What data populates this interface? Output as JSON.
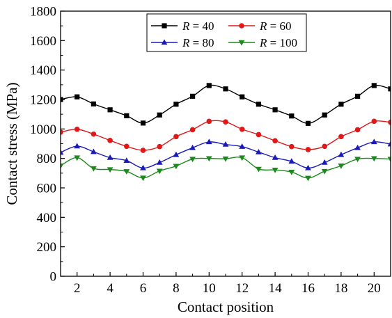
{
  "chart_data": {
    "type": "line",
    "xlabel": "Contact position",
    "ylabel": "Contact stress (MPa)",
    "xlim": [
      1,
      21
    ],
    "ylim": [
      0,
      1800
    ],
    "xticks": [
      2,
      4,
      6,
      8,
      10,
      12,
      14,
      16,
      18,
      20
    ],
    "yticks": [
      0,
      200,
      400,
      600,
      800,
      1000,
      1200,
      1400,
      1600,
      1800
    ],
    "legend_position": "top-right",
    "grid": false,
    "x": [
      1,
      2,
      3,
      4,
      5,
      6,
      7,
      8,
      9,
      10,
      11,
      12,
      13,
      14,
      15,
      16,
      17,
      18,
      19,
      20,
      21
    ],
    "series": [
      {
        "name": "R = 40",
        "legend_var": "R",
        "legend_val": "= 40",
        "color": "#000000",
        "marker": "square",
        "values": [
          1200,
          1218,
          1170,
          1130,
          1090,
          1040,
          1095,
          1168,
          1222,
          1295,
          1272,
          1218,
          1168,
          1130,
          1088,
          1038,
          1095,
          1168,
          1222,
          1295,
          1272
        ]
      },
      {
        "name": "R = 60",
        "legend_var": "R",
        "legend_val": "= 60",
        "color": "#e01818",
        "marker": "circle",
        "values": [
          978,
          998,
          965,
          922,
          882,
          855,
          880,
          948,
          995,
          1052,
          1048,
          998,
          962,
          920,
          880,
          860,
          882,
          948,
          995,
          1052,
          1045
        ]
      },
      {
        "name": "R = 80",
        "legend_var": "R",
        "legend_val": "= 80",
        "color": "#1a1ab8",
        "marker": "triangle-up",
        "values": [
          840,
          883,
          845,
          805,
          785,
          735,
          772,
          825,
          872,
          912,
          895,
          880,
          843,
          805,
          780,
          735,
          772,
          825,
          872,
          912,
          897
        ]
      },
      {
        "name": "R = 100",
        "legend_var": "R",
        "legend_val": "= 100",
        "color": "#1a8a1a",
        "marker": "triangle-down",
        "values": [
          750,
          805,
          732,
          725,
          712,
          668,
          715,
          748,
          796,
          800,
          798,
          805,
          728,
          722,
          708,
          667,
          713,
          750,
          796,
          800,
          796
        ]
      }
    ]
  }
}
